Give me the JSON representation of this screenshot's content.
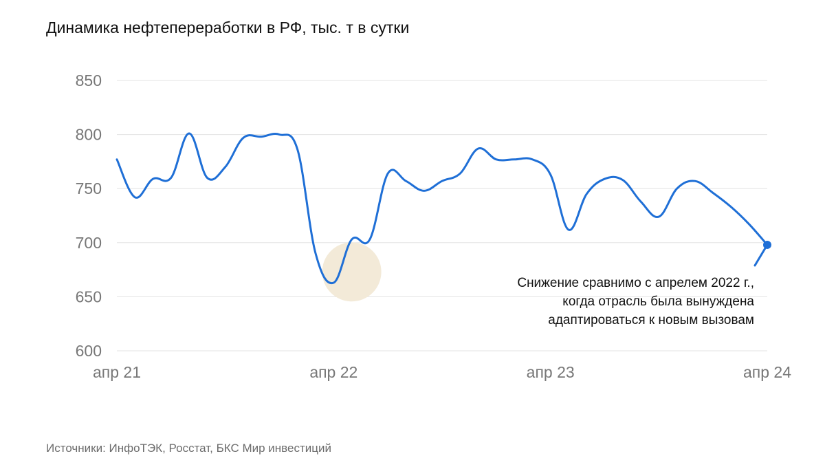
{
  "title": "Динамика нефтепереработки в РФ, тыс. т в сутки",
  "source": "Источники: ИнфоТЭК, Росстат, БКС Мир инвестиций",
  "annotation_lines": [
    "Снижение сравнимо с апрелем 2022 г.,",
    "когда отрасль была вынуждена",
    "адаптироваться к новым вызовам"
  ],
  "colors": {
    "line": "#1f6fd6",
    "highlight": "#f3ead8",
    "marker": "#1f6fd6"
  },
  "chart_data": {
    "type": "line",
    "title": "Динамика нефтепереработки в РФ, тыс. т в сутки",
    "xlabel": "",
    "ylabel": "",
    "ylim": [
      600,
      850
    ],
    "yticks": [
      "600",
      "650",
      "700",
      "750",
      "800",
      "850"
    ],
    "xticks": [
      "апр 21",
      "апр 22",
      "апр 23",
      "апр 24"
    ],
    "xlim": [
      0,
      36
    ],
    "grid": true,
    "series": [
      {
        "name": "",
        "x": [
          0,
          1,
          2,
          3,
          4,
          5,
          6,
          7,
          8,
          9,
          10,
          11,
          12,
          13,
          14,
          15,
          16,
          17,
          18,
          19,
          20,
          21,
          22,
          23,
          24,
          25,
          26,
          27,
          28,
          29,
          30,
          31,
          32,
          33,
          34,
          35,
          36
        ],
        "values": [
          777,
          742,
          759,
          760,
          801,
          760,
          770,
          797,
          798,
          800,
          786,
          690,
          663,
          703,
          703,
          764,
          757,
          748,
          757,
          764,
          787,
          777,
          777,
          777,
          763,
          712,
          745,
          759,
          758,
          738,
          724,
          750,
          757,
          746,
          733,
          717,
          698
        ]
      }
    ],
    "highlight_x": 13,
    "highlight_y": 673,
    "end_marker_x": 36,
    "end_marker_y": 698
  }
}
